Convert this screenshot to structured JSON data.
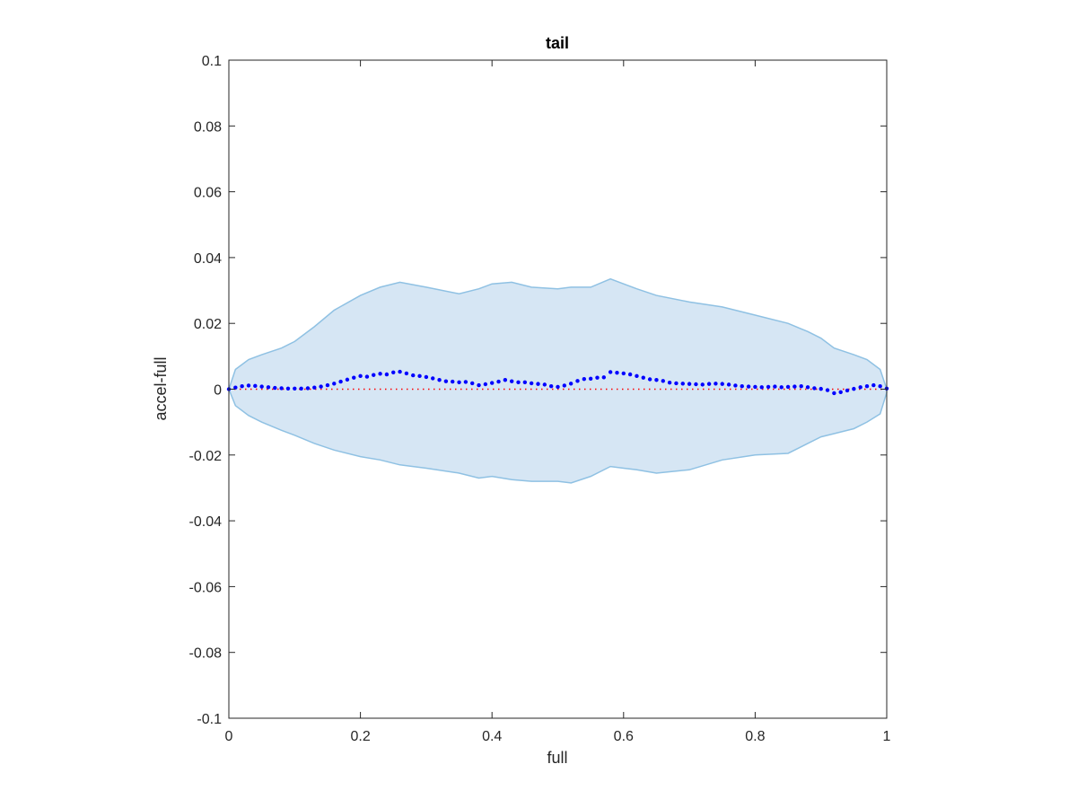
{
  "chart_data": {
    "type": "area",
    "title": "tail",
    "xlabel": "full",
    "ylabel": "accel-full",
    "xlim": [
      0,
      1
    ],
    "ylim": [
      -0.1,
      0.1
    ],
    "grid": false,
    "xticks": [
      "0",
      "0.2",
      "0.4",
      "0.6",
      "0.8",
      "1"
    ],
    "xtick_values": [
      0,
      0.2,
      0.4,
      0.6,
      0.8,
      1
    ],
    "yticks": [
      "0.1",
      "0.08",
      "0.06",
      "0.04",
      "0.02",
      "0",
      "-0.02",
      "-0.04",
      "-0.06",
      "-0.08",
      "-0.1"
    ],
    "ytick_values": [
      0.1,
      0.08,
      0.06,
      0.04,
      0.02,
      0,
      -0.02,
      -0.04,
      -0.06,
      -0.08,
      -0.1
    ],
    "colors": {
      "band_fill": "#d6e6f4",
      "band_edge": "#8fc1e3",
      "points": "#0000ff",
      "reference": "#ff0000",
      "axes": "#262626"
    },
    "band": {
      "x": [
        0,
        0.01,
        0.03,
        0.05,
        0.08,
        0.1,
        0.13,
        0.16,
        0.2,
        0.23,
        0.26,
        0.3,
        0.35,
        0.38,
        0.4,
        0.43,
        0.46,
        0.5,
        0.52,
        0.55,
        0.58,
        0.6,
        0.62,
        0.65,
        0.7,
        0.75,
        0.8,
        0.85,
        0.88,
        0.9,
        0.92,
        0.95,
        0.97,
        0.99,
        1
      ],
      "upper": [
        0,
        0.006,
        0.009,
        0.0105,
        0.0125,
        0.0145,
        0.019,
        0.024,
        0.0285,
        0.031,
        0.0325,
        0.031,
        0.029,
        0.0305,
        0.032,
        0.0325,
        0.031,
        0.0305,
        0.031,
        0.031,
        0.0335,
        0.032,
        0.0305,
        0.0285,
        0.0265,
        0.025,
        0.0225,
        0.02,
        0.0175,
        0.0155,
        0.0125,
        0.0105,
        0.009,
        0.006,
        0
      ],
      "lower": [
        0,
        -0.005,
        -0.008,
        -0.01,
        -0.0125,
        -0.014,
        -0.0165,
        -0.0185,
        -0.0205,
        -0.0215,
        -0.023,
        -0.024,
        -0.0255,
        -0.027,
        -0.0265,
        -0.0275,
        -0.028,
        -0.028,
        -0.0285,
        -0.0265,
        -0.0235,
        -0.024,
        -0.0245,
        -0.0255,
        -0.0245,
        -0.0215,
        -0.02,
        -0.0195,
        -0.0165,
        -0.0145,
        -0.0135,
        -0.012,
        -0.01,
        -0.0075,
        -0.001
      ]
    },
    "series": [
      {
        "type": "scatter",
        "x": [
          0,
          0.01,
          0.02,
          0.03,
          0.04,
          0.05,
          0.06,
          0.07,
          0.08,
          0.09,
          0.1,
          0.11,
          0.12,
          0.13,
          0.14,
          0.15,
          0.16,
          0.17,
          0.18,
          0.19,
          0.2,
          0.21,
          0.22,
          0.23,
          0.24,
          0.25,
          0.26,
          0.27,
          0.28,
          0.29,
          0.3,
          0.31,
          0.32,
          0.33,
          0.34,
          0.35,
          0.36,
          0.37,
          0.38,
          0.39,
          0.4,
          0.41,
          0.42,
          0.43,
          0.44,
          0.45,
          0.46,
          0.47,
          0.48,
          0.49,
          0.5,
          0.51,
          0.52,
          0.53,
          0.54,
          0.55,
          0.56,
          0.57,
          0.58,
          0.59,
          0.6,
          0.61,
          0.62,
          0.63,
          0.64,
          0.65,
          0.66,
          0.67,
          0.68,
          0.69,
          0.7,
          0.71,
          0.72,
          0.73,
          0.74,
          0.75,
          0.76,
          0.77,
          0.78,
          0.79,
          0.8,
          0.81,
          0.82,
          0.83,
          0.84,
          0.85,
          0.86,
          0.87,
          0.88,
          0.89,
          0.9,
          0.91,
          0.92,
          0.93,
          0.94,
          0.95,
          0.96,
          0.97,
          0.98,
          0.99,
          1
        ],
        "y": [
          0,
          0.0005,
          0.0009,
          0.0011,
          0.001,
          0.0008,
          0.0006,
          0.0004,
          0.0003,
          0.0002,
          0.0002,
          0.0002,
          0.0003,
          0.0005,
          0.0008,
          0.0012,
          0.0017,
          0.0023,
          0.0029,
          0.0035,
          0.004,
          0.0038,
          0.0043,
          0.0047,
          0.0045,
          0.0051,
          0.0053,
          0.0048,
          0.0042,
          0.004,
          0.0037,
          0.0033,
          0.0028,
          0.0024,
          0.0023,
          0.0021,
          0.0022,
          0.0018,
          0.0012,
          0.0015,
          0.0019,
          0.0023,
          0.0028,
          0.0024,
          0.0021,
          0.0021,
          0.0018,
          0.0016,
          0.0014,
          0.0009,
          0.0007,
          0.0011,
          0.0017,
          0.0025,
          0.0031,
          0.0032,
          0.0035,
          0.0036,
          0.0052,
          0.005,
          0.0048,
          0.0045,
          0.004,
          0.0035,
          0.003,
          0.0028,
          0.0025,
          0.002,
          0.0018,
          0.0017,
          0.0016,
          0.0015,
          0.0014,
          0.0016,
          0.0017,
          0.0016,
          0.0014,
          0.0011,
          0.0009,
          0.0008,
          0.0007,
          0.0006,
          0.0007,
          0.0008,
          0.0006,
          0.0007,
          0.0008,
          0.0009,
          0.0006,
          0.0003,
          0.0001,
          -0.0003,
          -0.0012,
          -0.0009,
          -0.0004,
          0.0001,
          0.0006,
          0.0009,
          0.0012,
          0.0009,
          0.0002
        ]
      },
      {
        "type": "line",
        "style": "dotted",
        "x": [
          0,
          1
        ],
        "y": [
          0,
          0
        ]
      }
    ]
  }
}
